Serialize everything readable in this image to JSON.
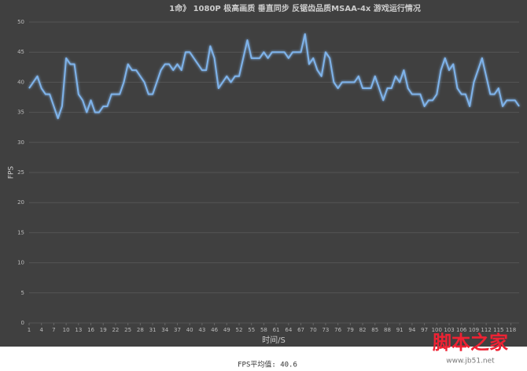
{
  "chart_data": {
    "type": "line",
    "title": "1命》 1080P 极高画质 垂直同步 反锯齿品质MSAA-4x 游戏运行情况",
    "x_label": "时间/S",
    "y_label": "FPS",
    "x": [
      1,
      2,
      3,
      4,
      5,
      6,
      7,
      8,
      9,
      10,
      11,
      12,
      13,
      14,
      15,
      16,
      17,
      18,
      19,
      20,
      21,
      22,
      23,
      24,
      25,
      26,
      27,
      28,
      29,
      30,
      31,
      32,
      33,
      34,
      35,
      36,
      37,
      38,
      39,
      40,
      41,
      42,
      43,
      44,
      45,
      46,
      47,
      48,
      49,
      50,
      51,
      52,
      53,
      54,
      55,
      56,
      57,
      58,
      59,
      60,
      61,
      62,
      63,
      64,
      65,
      66,
      67,
      68,
      69,
      70,
      71,
      72,
      73,
      74,
      75,
      76,
      77,
      78,
      79,
      80,
      81,
      82,
      83,
      84,
      85,
      86,
      87,
      88,
      89,
      90,
      91,
      92,
      93,
      94,
      95,
      96,
      97,
      98,
      99,
      100,
      101,
      102,
      103,
      104,
      105,
      106,
      107,
      108,
      109,
      110,
      111,
      112,
      113,
      114,
      115,
      116,
      117,
      118,
      119,
      120
    ],
    "series": [
      {
        "name": "FPS",
        "color": "#7fb3ea",
        "values": [
          39,
          40,
          41,
          39,
          38,
          38,
          36,
          34,
          36,
          44,
          43,
          43,
          38,
          37,
          35,
          37,
          35,
          35,
          36,
          36,
          38,
          38,
          38,
          40,
          43,
          42,
          42,
          41,
          40,
          38,
          38,
          40,
          42,
          43,
          43,
          42,
          43,
          42,
          45,
          45,
          44,
          43,
          42,
          42,
          46,
          44,
          39,
          40,
          41,
          40,
          41,
          41,
          44,
          47,
          44,
          44,
          44,
          45,
          44,
          45,
          45,
          45,
          45,
          44,
          45,
          45,
          45,
          48,
          43,
          44,
          42,
          41,
          45,
          44,
          40,
          39,
          40,
          40,
          40,
          40,
          41,
          39,
          39,
          39,
          41,
          39,
          37,
          39,
          39,
          41,
          40,
          42,
          39,
          38,
          38,
          38,
          36,
          37,
          37,
          38,
          42,
          44,
          42,
          43,
          39,
          38,
          38,
          36,
          40,
          42,
          44,
          41,
          38,
          38,
          39,
          36,
          37,
          37,
          37,
          36
        ]
      }
    ],
    "xlim": [
      1,
      120
    ],
    "xticks": [
      1,
      4,
      7,
      10,
      13,
      16,
      19,
      22,
      25,
      28,
      31,
      34,
      37,
      40,
      43,
      46,
      49,
      52,
      55,
      58,
      61,
      64,
      67,
      70,
      73,
      76,
      79,
      82,
      85,
      88,
      91,
      94,
      97,
      100,
      103,
      106,
      109,
      112,
      115,
      118
    ],
    "ylim": [
      0,
      50
    ],
    "yticks": [
      0,
      5,
      10,
      15,
      20,
      25,
      30,
      35,
      40,
      45,
      50
    ],
    "grid": true
  },
  "footer": "FPS平均值: 40.6",
  "watermark": "脚本之家",
  "watermark_url": "www.jb51.net"
}
